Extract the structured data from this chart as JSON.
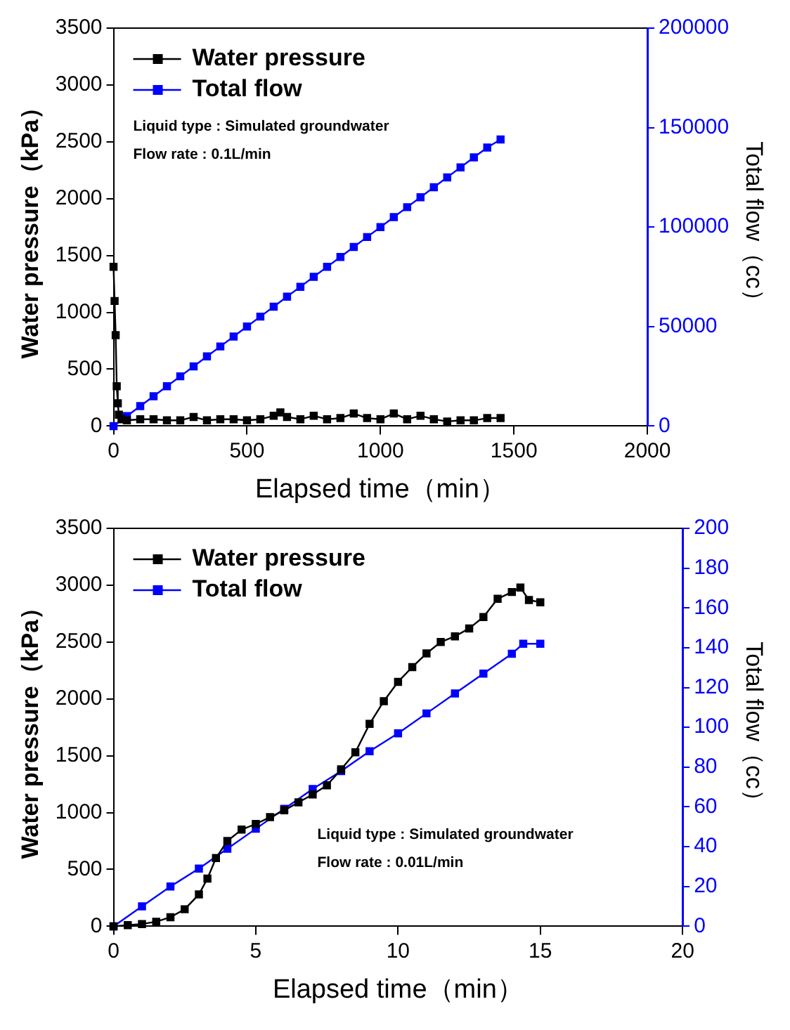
{
  "chart_data": [
    {
      "type": "line",
      "xlabel": "Elapsed time（min）",
      "ylabel": "Water pressure（kPa）",
      "y2label": "Total flow（cc）",
      "xlim": [
        0,
        2000
      ],
      "xticks": [
        0,
        500,
        1000,
        1500,
        2000
      ],
      "ylim": [
        0,
        3500
      ],
      "yticks": [
        0,
        500,
        1000,
        1500,
        2000,
        2500,
        3000,
        3500
      ],
      "y2lim": [
        0,
        200000
      ],
      "y2ticks": [
        0,
        50000,
        100000,
        150000,
        200000
      ],
      "legend": "top left",
      "marker": "square",
      "grid": false,
      "annotations": [
        "Liquid type : Simulated groundwater",
        "Flow rate : 0.1L/min"
      ],
      "series": [
        {
          "name": "Water pressure",
          "color": "#000000",
          "x": [
            0,
            4,
            8,
            12,
            16,
            20,
            30,
            50,
            100,
            150,
            200,
            250,
            300,
            350,
            400,
            450,
            500,
            550,
            600,
            625,
            650,
            700,
            750,
            800,
            850,
            900,
            950,
            1000,
            1050,
            1100,
            1150,
            1200,
            1250,
            1300,
            1350,
            1400,
            1450
          ],
          "values": [
            1400,
            1100,
            800,
            350,
            200,
            100,
            60,
            50,
            60,
            60,
            50,
            50,
            80,
            50,
            60,
            60,
            50,
            60,
            90,
            120,
            80,
            60,
            90,
            60,
            70,
            110,
            70,
            60,
            110,
            60,
            90,
            60,
            40,
            50,
            50,
            70,
            70
          ]
        },
        {
          "name": "Total flow",
          "color": "#0000ff",
          "axis": "y2",
          "x": [
            0,
            50,
            100,
            150,
            200,
            250,
            300,
            350,
            400,
            450,
            500,
            550,
            600,
            650,
            700,
            750,
            800,
            850,
            900,
            950,
            1000,
            1050,
            1100,
            1150,
            1200,
            1250,
            1300,
            1350,
            1400,
            1450
          ],
          "values": [
            0,
            5000,
            10000,
            15000,
            20000,
            25000,
            30000,
            35000,
            40000,
            45000,
            50000,
            55000,
            60000,
            65000,
            70000,
            75000,
            80000,
            85000,
            90000,
            95000,
            100000,
            105000,
            110000,
            115000,
            120000,
            125000,
            130000,
            135000,
            140000,
            144000
          ]
        }
      ]
    },
    {
      "type": "line",
      "xlabel": "Elapsed time（min）",
      "ylabel": "Water pressure（kPa）",
      "y2label": "Total flow（cc）",
      "xlim": [
        0,
        20
      ],
      "xticks": [
        0,
        5,
        10,
        15,
        20
      ],
      "ylim": [
        0,
        3500
      ],
      "yticks": [
        0,
        500,
        1000,
        1500,
        2000,
        2500,
        3000,
        3500
      ],
      "y2lim": [
        0,
        200
      ],
      "y2ticks": [
        0,
        20,
        40,
        60,
        80,
        100,
        120,
        140,
        160,
        180,
        200
      ],
      "legend": "top left",
      "marker": "square",
      "grid": false,
      "annotations": [
        "Liquid type : Simulated groundwater",
        "Flow rate : 0.01L/min"
      ],
      "series": [
        {
          "name": "Water pressure",
          "color": "#000000",
          "x": [
            0,
            0.5,
            1,
            1.5,
            2,
            2.5,
            3,
            3.3,
            3.6,
            4,
            4.5,
            5,
            5.5,
            6,
            6.5,
            7,
            7.5,
            8,
            8.5,
            9,
            9.5,
            10,
            10.5,
            11,
            11.5,
            12,
            12.5,
            13,
            13.5,
            14,
            14.3,
            14.6,
            15
          ],
          "values": [
            0,
            10,
            20,
            40,
            80,
            150,
            280,
            420,
            600,
            750,
            850,
            900,
            960,
            1020,
            1090,
            1160,
            1240,
            1380,
            1530,
            1780,
            1980,
            2150,
            2280,
            2400,
            2500,
            2550,
            2620,
            2720,
            2880,
            2940,
            2980,
            2870,
            2850
          ]
        },
        {
          "name": "Total flow",
          "color": "#0000ff",
          "axis": "y2",
          "x": [
            0,
            1,
            2,
            3,
            4,
            5,
            6,
            7,
            8,
            9,
            10,
            11,
            12,
            13,
            14,
            14.4,
            15
          ],
          "values": [
            0,
            10,
            20,
            29,
            39,
            49,
            59,
            69,
            78,
            88,
            97,
            107,
            117,
            127,
            137,
            142,
            142
          ]
        }
      ]
    }
  ]
}
